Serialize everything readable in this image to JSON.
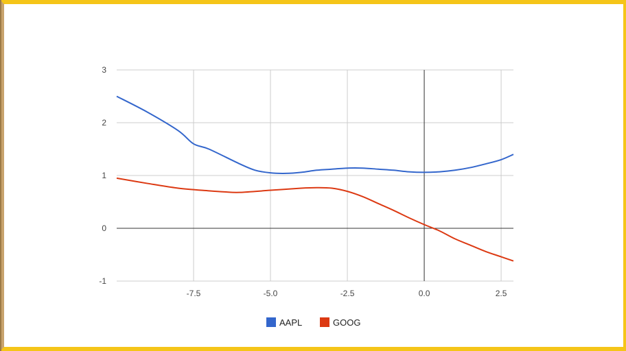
{
  "chart_data": {
    "type": "line",
    "title": "",
    "xlabel": "",
    "ylabel": "",
    "xlim": [
      -10,
      2.9
    ],
    "ylim": [
      -1,
      3
    ],
    "x_ticks": [
      -7.5,
      -5.0,
      -2.5,
      0.0,
      2.5
    ],
    "x_tick_labels": [
      "-7.5",
      "-5.0",
      "-2.5",
      "0.0",
      "2.5"
    ],
    "y_ticks": [
      3,
      2,
      1,
      0,
      -1
    ],
    "y_tick_labels": [
      "3",
      "2",
      "1",
      "0",
      "-1"
    ],
    "grid": true,
    "legend_position": "bottom",
    "series": [
      {
        "name": "AAPL",
        "color": "#3366cc",
        "x": [
          -10.0,
          -9.0,
          -8.0,
          -7.5,
          -7.0,
          -6.0,
          -5.5,
          -5.0,
          -4.5,
          -4.0,
          -3.5,
          -3.0,
          -2.5,
          -2.0,
          -1.5,
          -1.0,
          -0.5,
          0.0,
          0.5,
          1.0,
          1.5,
          2.0,
          2.5,
          2.9
        ],
        "y": [
          2.5,
          2.2,
          1.85,
          1.6,
          1.5,
          1.22,
          1.1,
          1.05,
          1.04,
          1.06,
          1.1,
          1.12,
          1.14,
          1.14,
          1.12,
          1.1,
          1.07,
          1.06,
          1.07,
          1.1,
          1.15,
          1.22,
          1.3,
          1.4
        ]
      },
      {
        "name": "GOOG",
        "color": "#dc3912",
        "x": [
          -10.0,
          -9.0,
          -8.0,
          -7.0,
          -6.5,
          -6.0,
          -5.0,
          -4.0,
          -3.5,
          -3.0,
          -2.5,
          -2.0,
          -1.5,
          -1.0,
          -0.5,
          0.0,
          0.5,
          1.0,
          1.5,
          2.0,
          2.5,
          2.9
        ],
        "y": [
          0.95,
          0.85,
          0.76,
          0.71,
          0.69,
          0.68,
          0.72,
          0.76,
          0.77,
          0.76,
          0.7,
          0.6,
          0.47,
          0.34,
          0.2,
          0.07,
          -0.05,
          -0.2,
          -0.32,
          -0.44,
          -0.54,
          -0.62
        ]
      }
    ]
  }
}
